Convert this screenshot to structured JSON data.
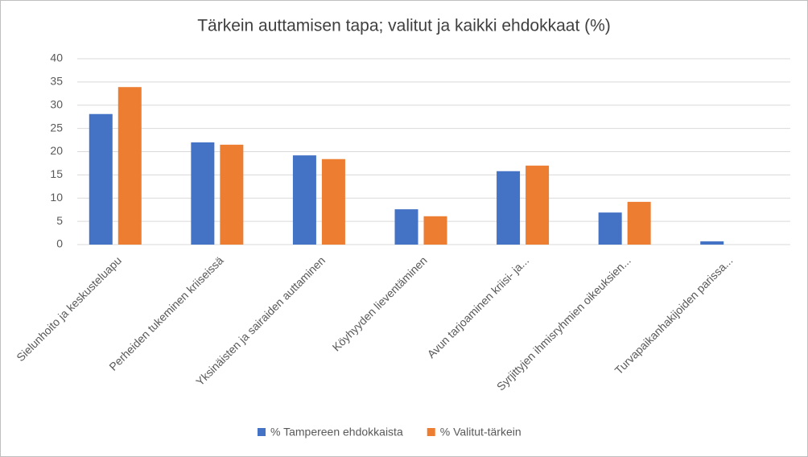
{
  "chart_data": {
    "type": "bar",
    "title": "Tärkein auttamisen tapa; valitut ja kaikki ehdokkaat (%)",
    "categories": [
      "Sielunhoito ja keskusteluapu",
      "Perheiden tukeminen kriiseissä",
      "Yksinäisten ja sairaiden auttaminen",
      "Köyhyyden lieventäminen",
      "Avun tarjoaminen kriisi- ja...",
      "Syrjittyjen ihmisryhmien oikeuksien...",
      "Turvapaikanhakijoiden parissa..."
    ],
    "series": [
      {
        "name": "% Tampereen ehdokkaista",
        "color": "#4472c4",
        "values": [
          28.1,
          22.0,
          19.2,
          7.6,
          15.8,
          6.9,
          0.7
        ]
      },
      {
        "name": "% Valitut-tärkein",
        "color": "#ed7d31",
        "values": [
          33.9,
          21.5,
          18.4,
          6.1,
          17.0,
          9.2,
          0
        ]
      }
    ],
    "ylim": [
      0,
      40
    ],
    "yticks": [
      0,
      5,
      10,
      15,
      20,
      25,
      30,
      35,
      40
    ],
    "grid": true,
    "legend": "bottom"
  }
}
